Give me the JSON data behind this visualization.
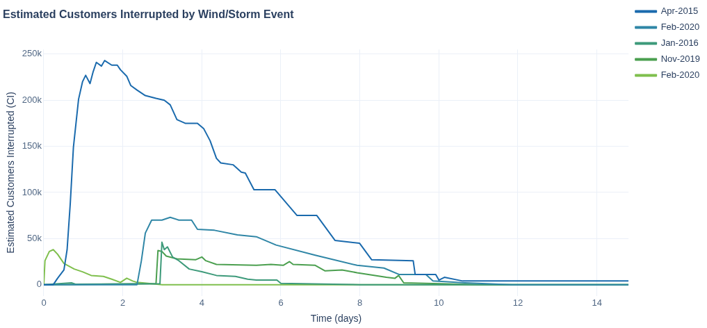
{
  "chart_data": {
    "type": "line",
    "title": "Estimated Customers Interrupted by Wind/Storm Event",
    "xlabel": "Time (days)",
    "ylabel": "Estimated Customers Interrupted (CI)",
    "xlim": [
      0,
      14.8
    ],
    "xticks": [
      0,
      2,
      4,
      6,
      8,
      10,
      12,
      14
    ],
    "ylim": [
      -12000,
      255000
    ],
    "yticks": [
      {
        "value": 0,
        "label": "0"
      },
      {
        "value": 50000,
        "label": "50k"
      },
      {
        "value": 100000,
        "label": "100k"
      },
      {
        "value": 150000,
        "label": "150k"
      },
      {
        "value": 200000,
        "label": "200k"
      },
      {
        "value": 250000,
        "label": "250k"
      }
    ],
    "grid": true,
    "legend": "top right",
    "marker": "none",
    "line_style": "solid",
    "series": [
      {
        "name": "Apr-2015",
        "color": "#1a6aad",
        "x": [
          0,
          0.24,
          0.35,
          0.51,
          0.59,
          0.67,
          0.75,
          0.88,
          0.98,
          1.06,
          1.17,
          1.25,
          1.33,
          1.46,
          1.54,
          1.72,
          1.86,
          1.94,
          2.1,
          2.2,
          2.36,
          2.57,
          2.84,
          3.05,
          3.2,
          3.37,
          3.58,
          3.89,
          4.05,
          4.21,
          4.37,
          4.48,
          4.79,
          5.0,
          5.1,
          5.32,
          5.85,
          6.41,
          6.91,
          7.37,
          7.99,
          8.3,
          9.35,
          9.4,
          9.92,
          10.0,
          10.14,
          10.6,
          14.8
        ],
        "values": [
          0,
          0,
          7000,
          16000,
          38000,
          88000,
          149000,
          201000,
          220000,
          227000,
          218000,
          231000,
          241000,
          237000,
          243000,
          238000,
          238000,
          233000,
          226000,
          216000,
          211000,
          205000,
          202000,
          200000,
          195000,
          179000,
          175000,
          175000,
          169000,
          156000,
          137000,
          132000,
          130000,
          122000,
          121000,
          103000,
          103000,
          75000,
          75000,
          48000,
          45000,
          27000,
          26000,
          11000,
          11000,
          5000,
          8000,
          4000,
          4000
        ]
      },
      {
        "name": "Feb-2020",
        "color": "#2f86a6",
        "x": [
          0,
          2.36,
          2.47,
          2.57,
          2.73,
          2.99,
          3.2,
          3.42,
          3.74,
          3.89,
          4.32,
          4.9,
          5.38,
          5.88,
          6.87,
          7.93,
          8.61,
          9.0,
          9.67,
          9.85,
          10.66,
          11.84,
          14.8
        ],
        "values": [
          0,
          0,
          26000,
          56000,
          70000,
          70000,
          73000,
          70000,
          70000,
          60000,
          59000,
          54000,
          52000,
          43000,
          32000,
          21000,
          18000,
          11000,
          11000,
          4000,
          2000,
          0,
          0
        ]
      },
      {
        "name": "Jan-2016",
        "color": "#3d9a7a",
        "x": [
          0,
          0.7,
          0.8,
          2.94,
          2.99,
          3.05,
          3.13,
          3.26,
          3.42,
          3.68,
          4.0,
          4.37,
          4.85,
          5.16,
          5.38,
          5.9,
          6.0,
          8.0,
          14.8
        ],
        "values": [
          0,
          2000,
          500,
          1000,
          46000,
          38000,
          41000,
          30000,
          26000,
          17000,
          14000,
          10000,
          9000,
          6000,
          5000,
          5000,
          1500,
          0,
          0
        ]
      },
      {
        "name": "Nov-2019",
        "color": "#4b9f4f",
        "x": [
          0,
          2.84,
          2.89,
          2.99,
          3.1,
          3.37,
          3.84,
          4.0,
          4.1,
          4.37,
          5.38,
          5.75,
          6.06,
          6.22,
          6.31,
          6.87,
          7.12,
          7.55,
          7.93,
          8.67,
          8.89,
          8.98,
          9.11,
          10.04,
          11.0,
          14.8
        ],
        "values": [
          0,
          1000,
          37000,
          36000,
          31000,
          28000,
          27000,
          30000,
          26000,
          22000,
          21000,
          22000,
          21000,
          25000,
          22000,
          21000,
          15000,
          16000,
          13000,
          8000,
          7000,
          10000,
          2000,
          1000,
          0,
          0
        ]
      },
      {
        "name": "Feb-2020",
        "color": "#7fbf4d",
        "x": [
          0,
          0.03,
          0.14,
          0.24,
          0.35,
          0.51,
          0.77,
          0.98,
          1.2,
          1.51,
          1.72,
          1.94,
          2.1,
          2.25,
          2.36,
          3.0,
          14.8
        ],
        "values": [
          0,
          26000,
          36000,
          38000,
          33000,
          23000,
          17000,
          14000,
          10000,
          9000,
          6000,
          2500,
          7000,
          4000,
          2500,
          0,
          0
        ]
      }
    ]
  }
}
